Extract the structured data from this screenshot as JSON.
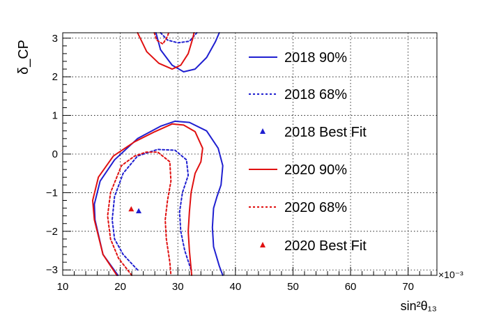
{
  "chart_data": {
    "type": "contour",
    "xlabel": "sin²θ₁₃",
    "ylabel": "δ_CP",
    "x_multiplier": "×10⁻³",
    "xlim": [
      10,
      75
    ],
    "ylim": [
      -3.14,
      3.14
    ],
    "grid": true,
    "legend_position": "right-inside",
    "x_ticks": [
      10,
      20,
      30,
      40,
      50,
      60,
      70
    ],
    "x_tick_labels": [
      "10",
      "20",
      "30",
      "40",
      "50",
      "60",
      "70"
    ],
    "y_ticks": [
      -3,
      -2,
      -1,
      0,
      1,
      2,
      3
    ],
    "y_tick_labels": [
      "−3",
      "−2",
      "−1",
      "0",
      "1",
      "2",
      "3"
    ],
    "legend": [
      {
        "label": "2018 90%",
        "color": "#1f1fd0",
        "style": "solid"
      },
      {
        "label": "2018 68%",
        "color": "#1f1fd0",
        "style": "dotted"
      },
      {
        "label": "2018 Best Fit",
        "color": "#1f1fd0",
        "style": "marker"
      },
      {
        "label": "2020 90%",
        "color": "#e01010",
        "style": "solid"
      },
      {
        "label": "2020 68%",
        "color": "#e01010",
        "style": "dotted"
      },
      {
        "label": "2020 Best Fit",
        "color": "#e01010",
        "style": "marker"
      }
    ],
    "series": [
      {
        "name": "2018 90%",
        "color": "#1f1fd0",
        "style": "solid",
        "contours": [
          [
            [
              19.6,
              -3.14
            ],
            [
              17,
              -2.6
            ],
            [
              15.6,
              -1.7
            ],
            [
              15.5,
              -1.3
            ],
            [
              16.5,
              -0.7
            ],
            [
              19,
              -0.15
            ],
            [
              23,
              0.4
            ],
            [
              27,
              0.72
            ],
            [
              29.5,
              0.85
            ],
            [
              32,
              0.82
            ],
            [
              35,
              0.6
            ],
            [
              37,
              0.15
            ],
            [
              37.8,
              -0.3
            ],
            [
              37.5,
              -0.8
            ],
            [
              36.8,
              -1.1
            ],
            [
              36.2,
              -1.4
            ],
            [
              36,
              -1.9
            ],
            [
              36.2,
              -2.4
            ],
            [
              37.2,
              -2.9
            ],
            [
              37.8,
              -3.14
            ]
          ],
          [
            [
              26.2,
              3.14
            ],
            [
              27,
              2.7
            ],
            [
              29,
              2.3
            ],
            [
              31,
              2.13
            ],
            [
              33,
              2.2
            ],
            [
              35,
              2.5
            ],
            [
              36.5,
              2.9
            ],
            [
              37.2,
              3.14
            ]
          ]
        ]
      },
      {
        "name": "2018 68%",
        "color": "#1f1fd0",
        "style": "dotted",
        "contours": [
          [
            [
              23,
              -3.0
            ],
            [
              20.5,
              -2.6
            ],
            [
              19,
              -2.2
            ],
            [
              18.6,
              -1.7
            ],
            [
              19,
              -1.1
            ],
            [
              20.5,
              -0.5
            ],
            [
              23,
              -0.05
            ],
            [
              26.5,
              0.12
            ],
            [
              29.5,
              0.1
            ],
            [
              31.5,
              -0.15
            ],
            [
              31.8,
              -0.55
            ],
            [
              30.8,
              -1.0
            ],
            [
              30.3,
              -1.5
            ],
            [
              30.5,
              -2.0
            ],
            [
              31.2,
              -2.5
            ],
            [
              32.3,
              -3.0
            ]
          ],
          [
            [
              27,
              3.14
            ],
            [
              28.2,
              2.95
            ],
            [
              30,
              2.88
            ],
            [
              32,
              2.92
            ],
            [
              33.3,
              3.14
            ]
          ]
        ]
      },
      {
        "name": "2020 90%",
        "color": "#e01010",
        "style": "solid",
        "contours": [
          [
            [
              19.4,
              -3.14
            ],
            [
              17,
              -2.6
            ],
            [
              15.5,
              -1.7
            ],
            [
              15.2,
              -1.2
            ],
            [
              16.2,
              -0.6
            ],
            [
              18.8,
              -0.05
            ],
            [
              22.5,
              0.32
            ],
            [
              26,
              0.58
            ],
            [
              29,
              0.78
            ],
            [
              31,
              0.75
            ],
            [
              33,
              0.58
            ],
            [
              34.3,
              0.15
            ],
            [
              34,
              -0.2
            ],
            [
              33,
              -0.5
            ],
            [
              32.3,
              -1.0
            ],
            [
              32,
              -1.5
            ],
            [
              31.8,
              -2.0
            ],
            [
              32,
              -2.5
            ],
            [
              32.4,
              -3.14
            ]
          ],
          [
            [
              23,
              3.14
            ],
            [
              24.6,
              2.65
            ],
            [
              26.7,
              2.35
            ],
            [
              29,
              2.2
            ],
            [
              30.5,
              2.3
            ],
            [
              31.8,
              2.6
            ],
            [
              32.6,
              3.0
            ],
            [
              32.8,
              3.14
            ]
          ]
        ]
      },
      {
        "name": "2020 68%",
        "color": "#e01010",
        "style": "dotted",
        "contours": [
          [
            [
              22,
              -3.14
            ],
            [
              19.7,
              -2.7
            ],
            [
              18.3,
              -2.2
            ],
            [
              17.8,
              -1.6
            ],
            [
              18.3,
              -1.0
            ],
            [
              20.2,
              -0.3
            ],
            [
              22.5,
              -0.05
            ],
            [
              24.5,
              0.05
            ],
            [
              26.5,
              0.05
            ],
            [
              28.6,
              -0.2
            ],
            [
              28.8,
              -0.7
            ],
            [
              28.2,
              -1.2
            ],
            [
              27.8,
              -1.7
            ],
            [
              28,
              -2.2
            ],
            [
              28.6,
              -2.8
            ],
            [
              28.8,
              -3.14
            ]
          ],
          [
            [
              25.9,
              3.14
            ],
            [
              26.3,
              2.95
            ],
            [
              27.4,
              2.85
            ],
            [
              28.2,
              3.05
            ],
            [
              28.4,
              3.14
            ]
          ]
        ]
      },
      {
        "name": "2018 Best Fit",
        "color": "#1f1fd0",
        "style": "marker",
        "points": [
          [
            23.2,
            -1.47
          ]
        ]
      },
      {
        "name": "2020 Best Fit",
        "color": "#e01010",
        "style": "marker",
        "points": [
          [
            21.9,
            -1.42
          ]
        ]
      }
    ]
  }
}
